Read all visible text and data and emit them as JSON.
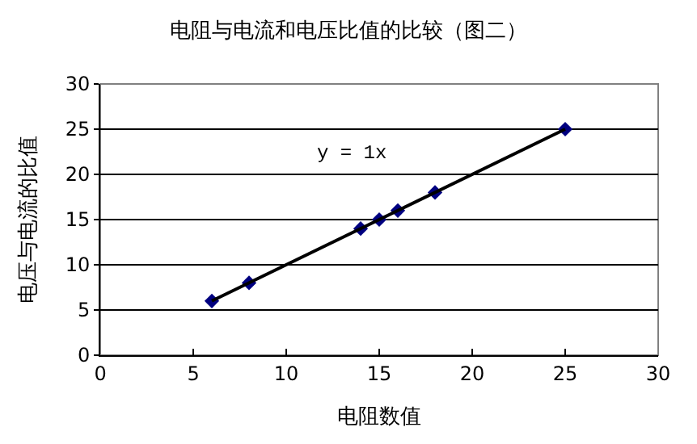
{
  "chart_data": {
    "type": "scatter",
    "title": "电阻与电流和电压比值的比较（图二）",
    "xlabel": "电阻数值",
    "ylabel": "电压与电流的比值",
    "series": [
      {
        "color": "#000080",
        "x": [
          6,
          8,
          14,
          15,
          16,
          18,
          25
        ],
        "values": [
          6,
          8,
          14,
          15,
          16,
          18,
          25
        ],
        "marker": "diamond"
      },
      {
        "type": "line",
        "color": "#000000",
        "x": [
          6,
          25
        ],
        "values": [
          6,
          25
        ],
        "marker": "none",
        "line_style": "solid"
      }
    ],
    "annotations": [
      "y = 1x"
    ],
    "xlim": [
      0,
      30
    ],
    "xticks": [
      0,
      5,
      10,
      15,
      20,
      25,
      30
    ],
    "ylim": [
      0,
      30
    ],
    "yticks": [
      0,
      5,
      10,
      15,
      20,
      25,
      30
    ],
    "grid": "y"
  }
}
